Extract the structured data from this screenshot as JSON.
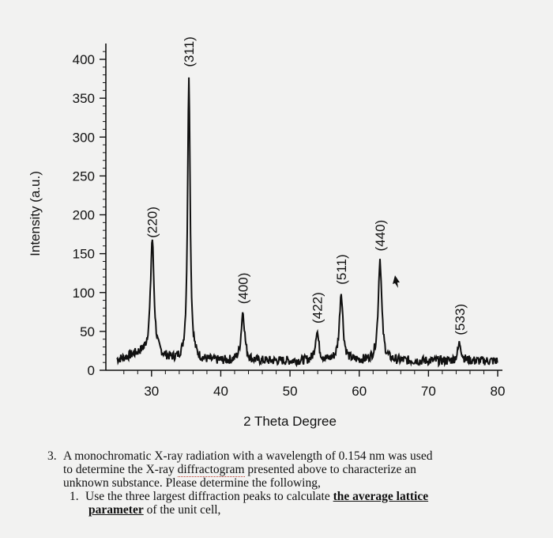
{
  "chart_data": {
    "type": "line",
    "xlabel": "2 Theta Degree",
    "ylabel": "Intensity (a.u.)",
    "xlim": [
      25,
      80
    ],
    "ylim": [
      0,
      420
    ],
    "x_ticks": [
      30,
      40,
      50,
      60,
      70,
      80
    ],
    "y_ticks": [
      0,
      50,
      100,
      150,
      200,
      250,
      300,
      350,
      400
    ],
    "grid": false,
    "peaks": [
      {
        "label": "(220)",
        "x": 30.1,
        "y": 160
      },
      {
        "label": "(311)",
        "x": 35.4,
        "y": 380
      },
      {
        "label": "(400)",
        "x": 43.2,
        "y": 75
      },
      {
        "label": "(422)",
        "x": 53.9,
        "y": 50
      },
      {
        "label": "(511)",
        "x": 57.4,
        "y": 100
      },
      {
        "label": "(440)",
        "x": 63.0,
        "y": 143
      },
      {
        "label": "(533)",
        "x": 74.5,
        "y": 35
      }
    ],
    "baseline": 12
  },
  "question": {
    "number": "3.",
    "line1": "A monochromatic X-ray radiation with a wavelength of 0.154 nm was used",
    "line2_pre": "to determine the X-ray ",
    "line2_word": "diffractogram",
    "line2_post": " presented above to characterize an",
    "line3": "unknown substance. Please determine the following,",
    "item_number": "1.",
    "item_pre": "Use the three largest diffraction peaks to calculate ",
    "item_bold": "the average lattice",
    "item_bold2": "parameter",
    "item_post": " of the unit cell,"
  }
}
